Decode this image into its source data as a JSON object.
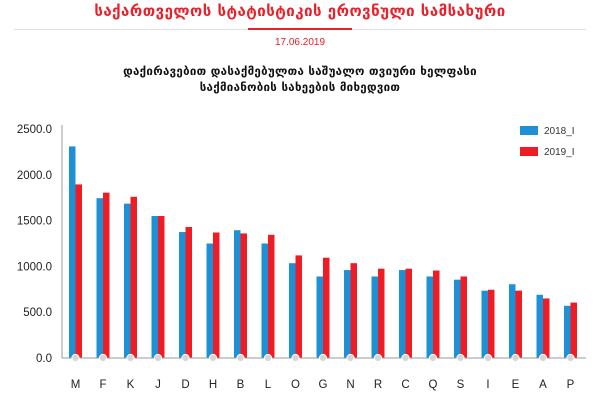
{
  "header": {
    "title": "საქართველოს სტატისტიკის ეროვნული სამსახური",
    "date": "17.06.2019",
    "subtitle_line1": "დაქირავებით დასაქმებულთა საშუალო თვიური ხელფასი",
    "subtitle_line2": "საქმიანობის სახეების მიხედვით"
  },
  "colors": {
    "accent": "#e8202a",
    "series_2018": "#1e90d6",
    "series_2019": "#ee1c25",
    "axis": "#9a9a9a"
  },
  "chart_data": {
    "type": "bar",
    "categories": [
      "M",
      "F",
      "K",
      "J",
      "D",
      "H",
      "B",
      "L",
      "O",
      "G",
      "N",
      "R",
      "C",
      "Q",
      "S",
      "I",
      "E",
      "A",
      "P"
    ],
    "series": [
      {
        "name": "2018_I",
        "values": [
          2310,
          1745,
          1685,
          1550,
          1375,
          1250,
          1395,
          1250,
          1035,
          890,
          960,
          890,
          960,
          890,
          855,
          735,
          805,
          690,
          570
        ]
      },
      {
        "name": "2019_I",
        "values": [
          1895,
          1805,
          1760,
          1550,
          1430,
          1370,
          1360,
          1345,
          1120,
          1095,
          1035,
          975,
          975,
          955,
          890,
          745,
          735,
          650,
          605
        ]
      }
    ],
    "ylim": [
      0,
      2500
    ],
    "yticks": [
      "0.0",
      "500.0",
      "1000.0",
      "1500.0",
      "2000.0",
      "2500.0"
    ],
    "grid": false,
    "legend_position": "top-right"
  }
}
